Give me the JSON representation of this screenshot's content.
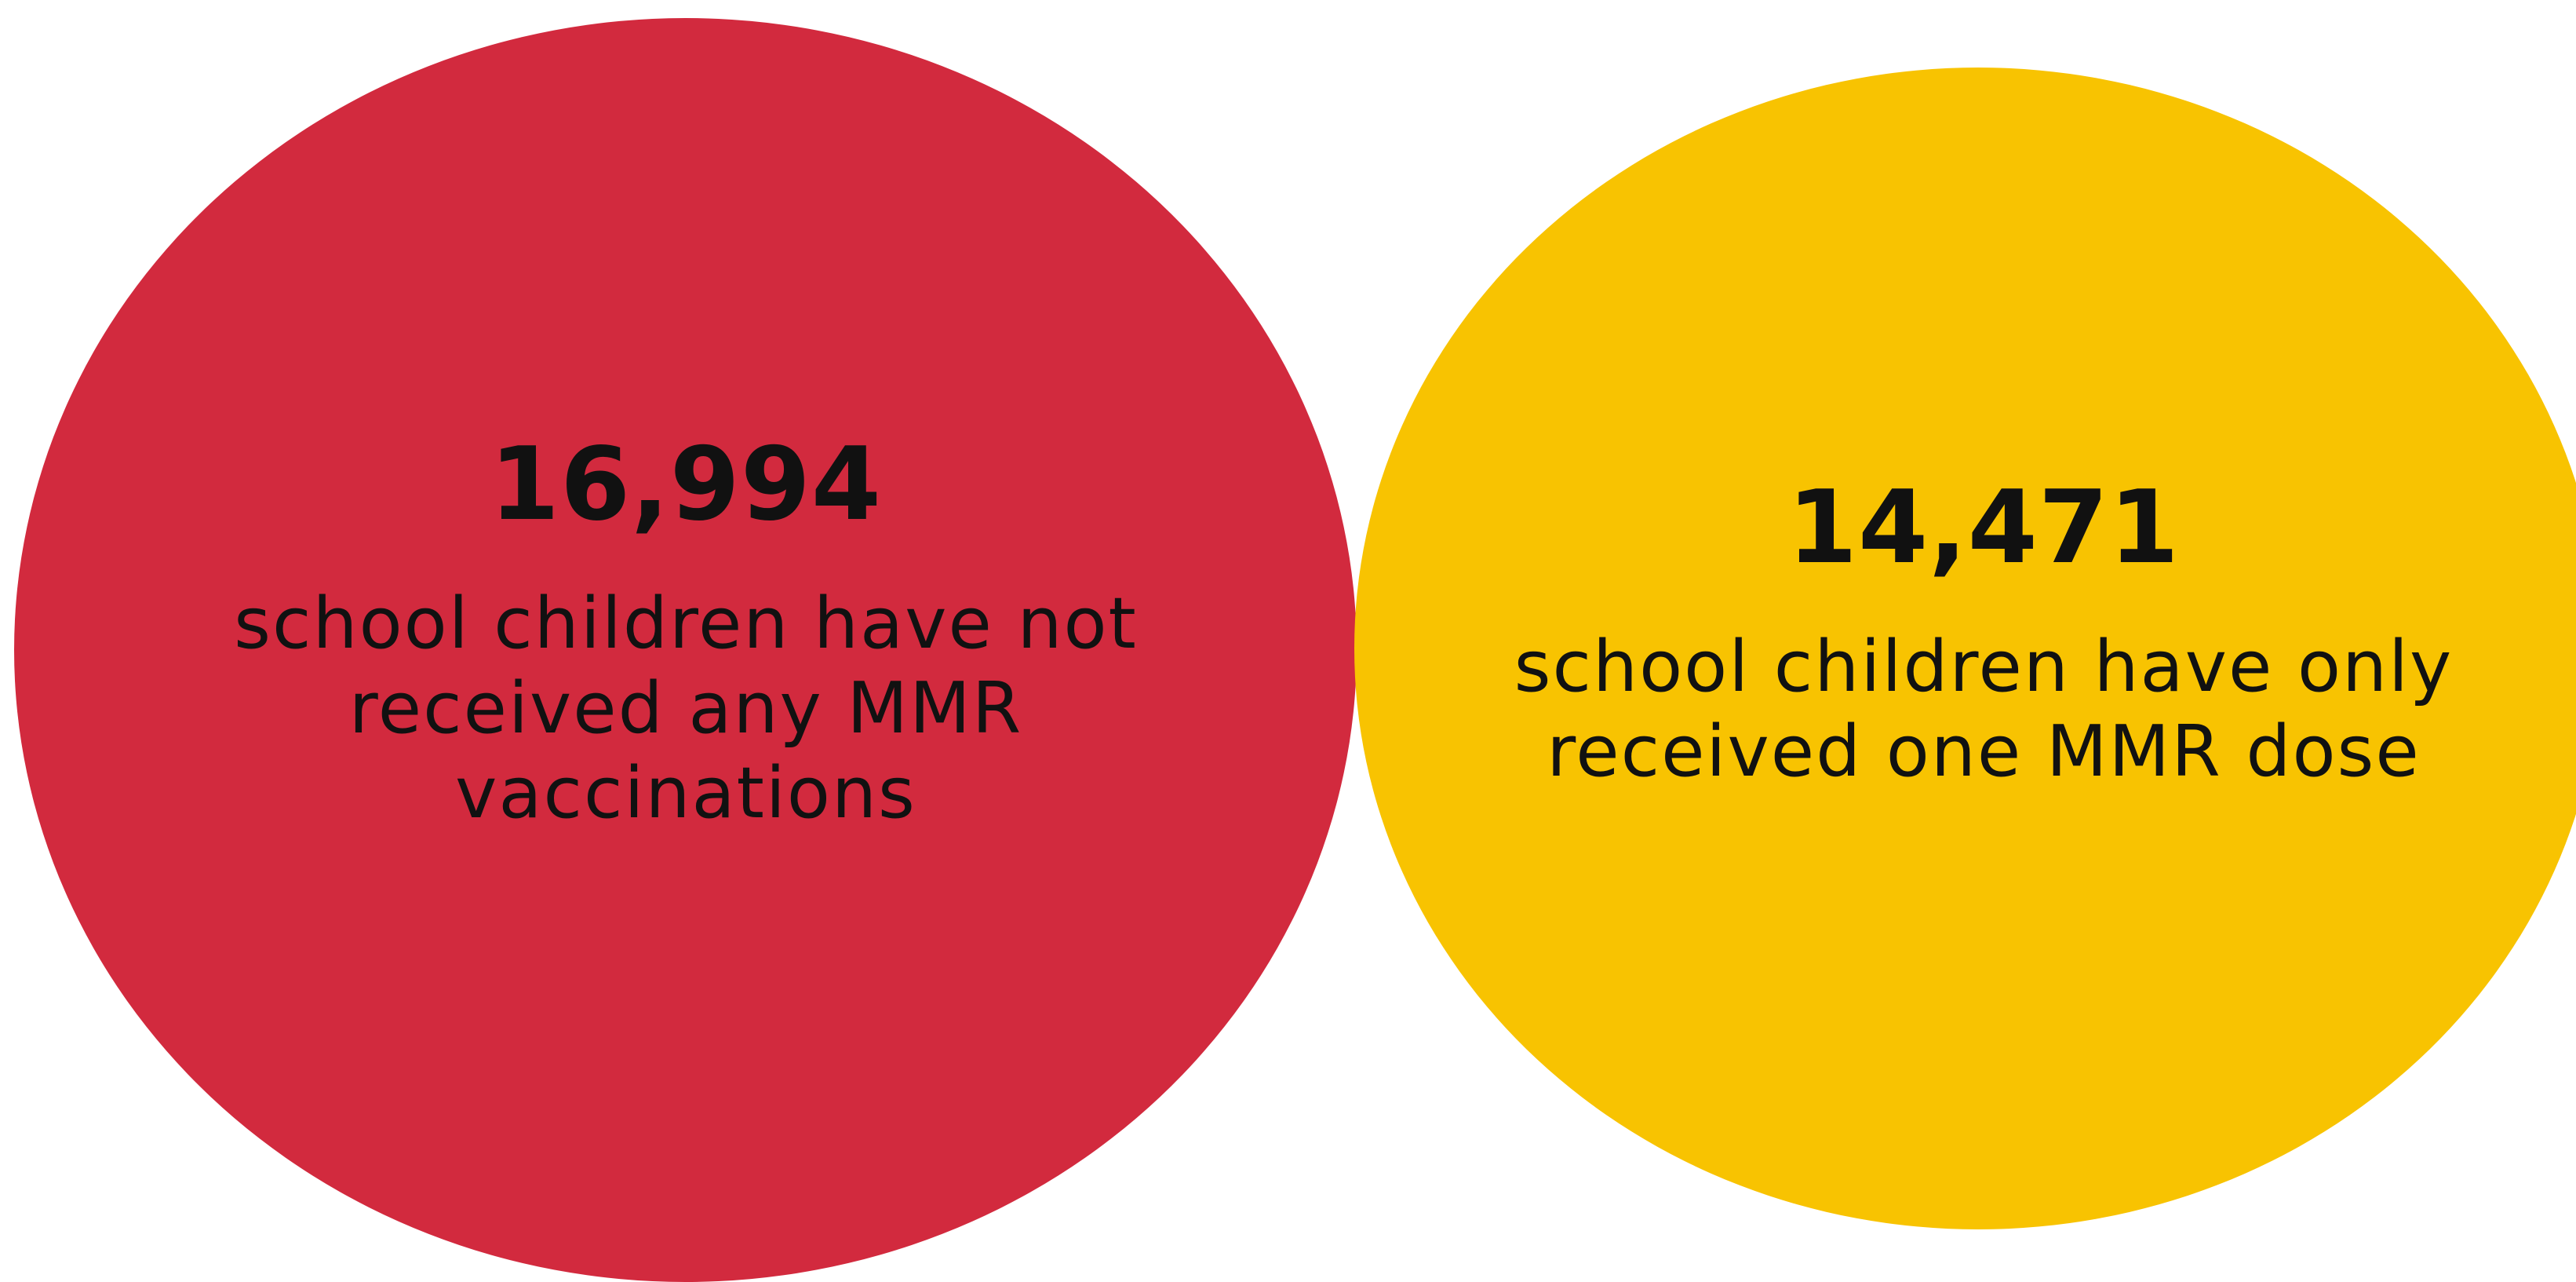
{
  "colors": {
    "red": "#d22a3e",
    "yellow": "#f8c301",
    "text": "#111111",
    "background": "#ffffff"
  },
  "stats": [
    {
      "number": "16,994",
      "label": "school children have not\nreceived any MMR\nvaccinations"
    },
    {
      "number": "14,471",
      "label": "school children have only\nreceived one MMR dose"
    }
  ]
}
